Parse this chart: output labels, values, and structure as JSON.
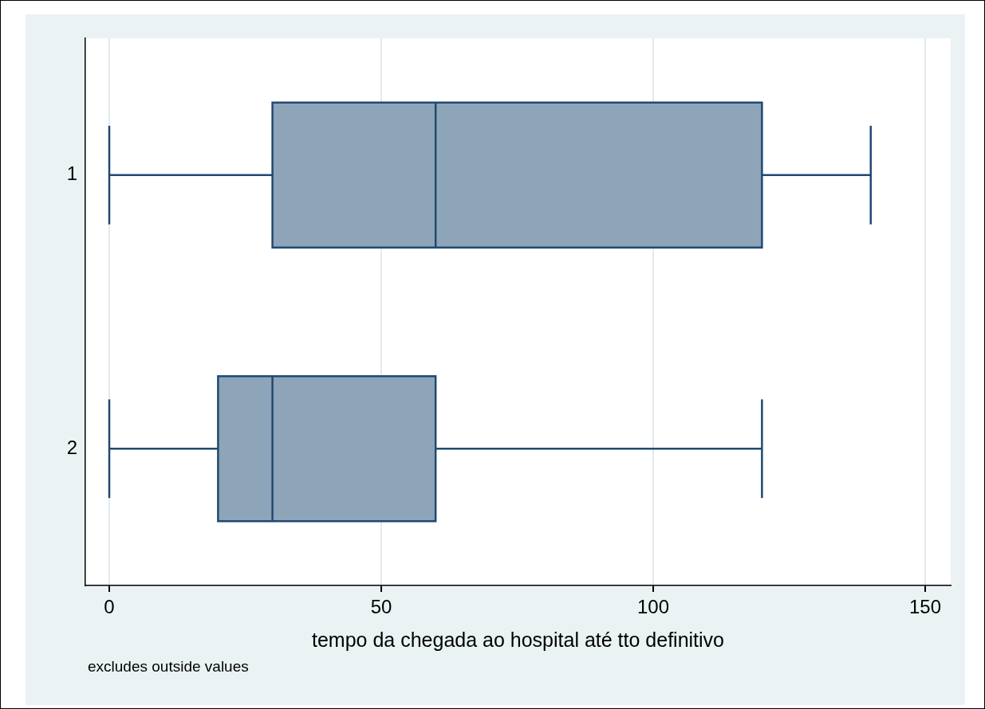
{
  "chart_data": {
    "type": "box",
    "orientation": "horizontal",
    "categories": [
      "1",
      "2"
    ],
    "boxes": [
      {
        "low": 0,
        "q1": 30,
        "median": 60,
        "q3": 120,
        "high": 140
      },
      {
        "low": 0,
        "q1": 20,
        "median": 30,
        "q3": 60,
        "high": 120
      }
    ],
    "color": "#8ea4b8",
    "xlim": [
      -4.4,
      154.7
    ],
    "xticks": [
      0,
      50,
      100,
      150
    ],
    "grid": "x",
    "xlabel": "tempo da chegada ao hospital até tto definitivo",
    "annotations": [
      "excludes outside values"
    ]
  }
}
